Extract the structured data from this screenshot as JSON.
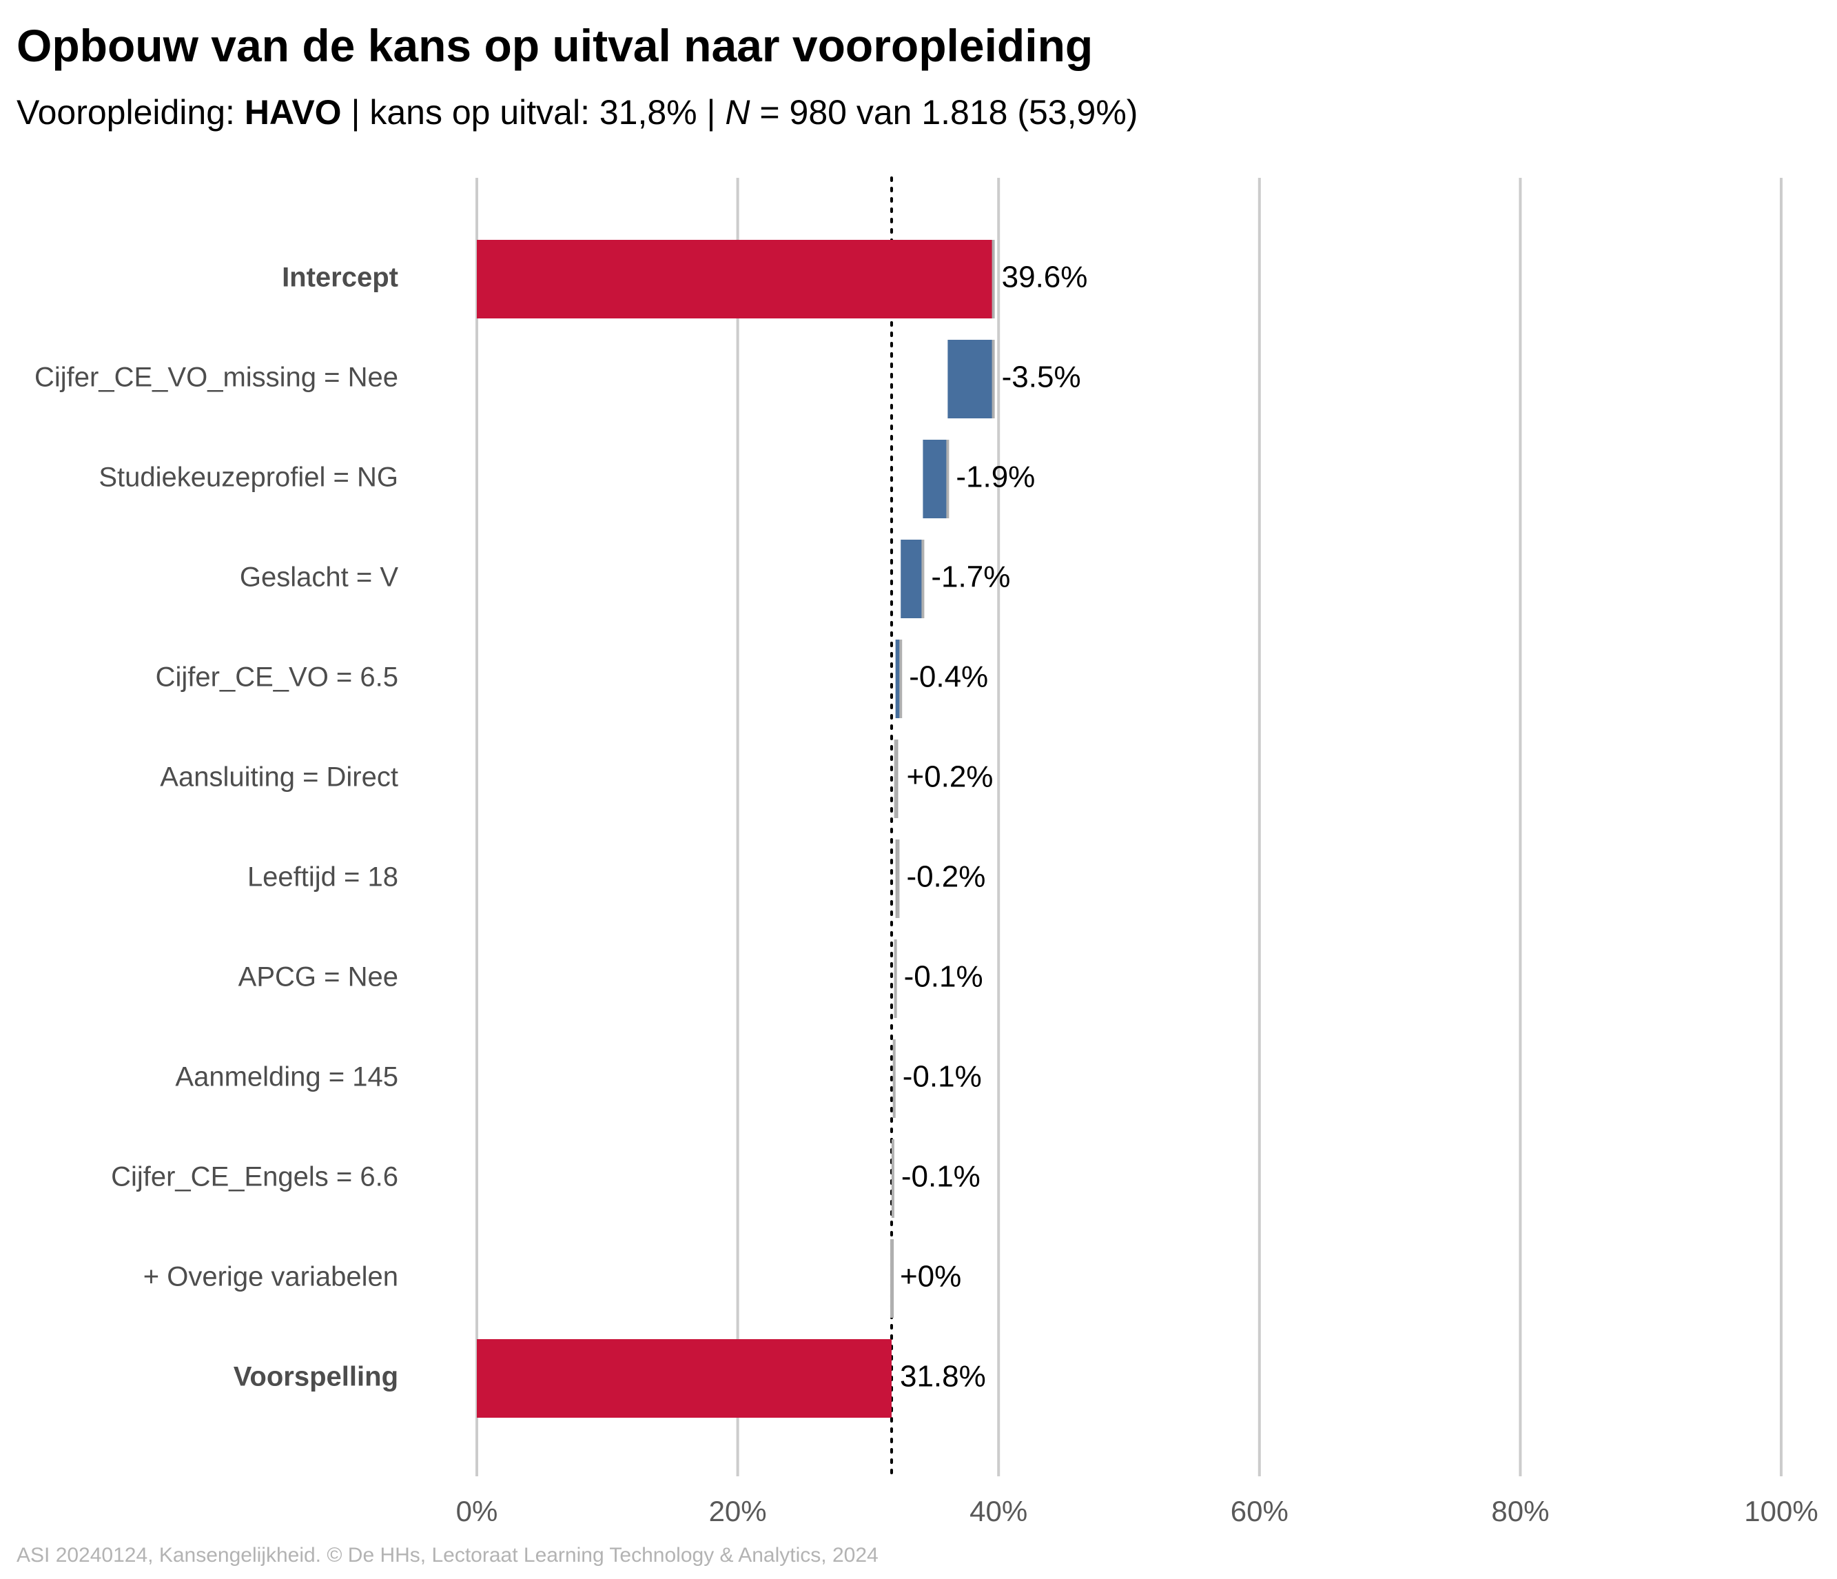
{
  "title": "Opbouw van de kans op uitval naar vooropleiding",
  "subtitle": {
    "prefix": "Vooropleiding: ",
    "group": "HAVO",
    "sep1": " | kans op uitval: ",
    "prob": "31,8%",
    "sep2": " | ",
    "n_label": "N",
    "n_text": " = 980 van 1.818 (53,9%)"
  },
  "caption": "ASI 20240124, Kansengelijkheid. © De HHs, Lectoraat Learning Technology & Analytics, 2024",
  "colors": {
    "endpoint": "#C8133A",
    "negative": "#476F9E",
    "positive": "#A8A8A8",
    "small": "#A8A8A8",
    "connector": "#B0B0B0",
    "grid": "#CCCCCC",
    "reference": "#000000",
    "category_label": "#4D4D4D",
    "tick_label": "#595959"
  },
  "chart_data": {
    "type": "bar",
    "subtype": "waterfall-horizontal",
    "xlim": [
      0,
      100
    ],
    "x_ticks": [
      "0%",
      "20%",
      "40%",
      "60%",
      "80%",
      "100%"
    ],
    "x_tick_values": [
      0,
      20,
      40,
      60,
      80,
      100
    ],
    "reference_line": 31.8,
    "grid": true,
    "rows": [
      {
        "label": "Intercept",
        "bold": true,
        "kind": "total",
        "start": 0,
        "end": 39.6,
        "value_label": "39.6%"
      },
      {
        "label": "Cijfer_CE_VO_missing = Nee",
        "bold": false,
        "kind": "step",
        "start": 39.6,
        "end": 36.1,
        "value_label": "-3.5%"
      },
      {
        "label": "Studiekeuzeprofiel = NG",
        "bold": false,
        "kind": "step",
        "start": 36.1,
        "end": 34.2,
        "value_label": "-1.9%"
      },
      {
        "label": "Geslacht = V",
        "bold": false,
        "kind": "step",
        "start": 34.2,
        "end": 32.5,
        "value_label": "-1.7%"
      },
      {
        "label": "Cijfer_CE_VO = 6.5",
        "bold": false,
        "kind": "step",
        "start": 32.5,
        "end": 32.1,
        "value_label": "-0.4%"
      },
      {
        "label": "Aansluiting = Direct",
        "bold": false,
        "kind": "step",
        "start": 32.1,
        "end": 32.3,
        "value_label": "+0.2%"
      },
      {
        "label": "Leeftijd = 18",
        "bold": false,
        "kind": "step",
        "start": 32.3,
        "end": 32.1,
        "value_label": "-0.2%"
      },
      {
        "label": "APCG = Nee",
        "bold": false,
        "kind": "step",
        "start": 32.1,
        "end": 32.0,
        "value_label": "-0.1%"
      },
      {
        "label": "Aanmelding = 145",
        "bold": false,
        "kind": "step",
        "start": 32.0,
        "end": 31.9,
        "value_label": "-0.1%"
      },
      {
        "label": "Cijfer_CE_Engels = 6.6",
        "bold": false,
        "kind": "step",
        "start": 31.9,
        "end": 31.8,
        "value_label": "-0.1%"
      },
      {
        "label": "+ Overige variabelen",
        "bold": false,
        "kind": "step",
        "start": 31.8,
        "end": 31.8,
        "value_label": "+0%"
      },
      {
        "label": "Voorspelling",
        "bold": true,
        "kind": "total",
        "start": 0,
        "end": 31.8,
        "value_label": "31.8%"
      }
    ]
  }
}
